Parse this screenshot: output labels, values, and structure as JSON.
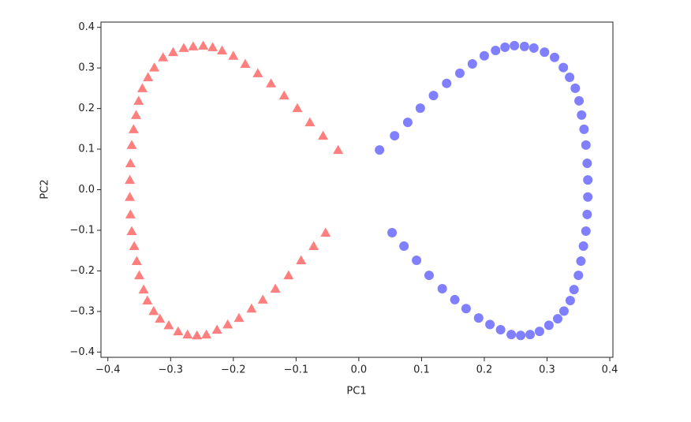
{
  "chart_data": {
    "type": "scatter",
    "x_label": "PC1",
    "y_label": "PC2",
    "xlim": [
      -0.411,
      0.405
    ],
    "ylim": [
      -0.413,
      0.413
    ],
    "xticks": [
      {
        "value": -0.4,
        "label": "−0.4"
      },
      {
        "value": -0.3,
        "label": "−0.3"
      },
      {
        "value": -0.2,
        "label": "−0.2"
      },
      {
        "value": -0.1,
        "label": "−0.1"
      },
      {
        "value": 0,
        "label": "0.0"
      },
      {
        "value": 0.1,
        "label": "0.1"
      },
      {
        "value": 0.2,
        "label": "0.2"
      },
      {
        "value": 0.3,
        "label": "0.3"
      },
      {
        "value": 0.4,
        "label": "0.4"
      }
    ],
    "yticks": [
      {
        "value": -0.4,
        "label": "−0.4"
      },
      {
        "value": -0.3,
        "label": "−0.3"
      },
      {
        "value": -0.2,
        "label": "−0.2"
      },
      {
        "value": -0.1,
        "label": "−0.1"
      },
      {
        "value": 0,
        "label": "0.0"
      },
      {
        "value": 0.1,
        "label": "0.1"
      },
      {
        "value": 0.2,
        "label": "0.2"
      },
      {
        "value": 0.3,
        "label": "0.3"
      },
      {
        "value": 0.4,
        "label": "0.4"
      }
    ],
    "series": [
      {
        "color": "red",
        "marker": "triangle",
        "x": [
          -0.033,
          -0.057,
          -0.078,
          -0.098,
          -0.119,
          -0.14,
          -0.161,
          -0.181,
          -0.2,
          -0.218,
          -0.233,
          -0.248,
          -0.264,
          -0.279,
          -0.296,
          -0.312,
          -0.326,
          -0.336,
          -0.345,
          -0.351,
          -0.355,
          -0.359,
          -0.362,
          -0.364,
          -0.365,
          -0.365,
          -0.364,
          -0.362,
          -0.358,
          -0.354,
          -0.35,
          -0.343,
          -0.337,
          -0.327,
          -0.317,
          -0.303,
          -0.288,
          -0.273,
          -0.258,
          -0.243,
          -0.226,
          -0.209,
          -0.191,
          -0.171,
          -0.153,
          -0.133,
          -0.112,
          -0.092,
          -0.072,
          -0.053
        ],
        "values": [
          0.098,
          0.133,
          0.166,
          0.201,
          0.232,
          0.262,
          0.287,
          0.31,
          0.33,
          0.343,
          0.351,
          0.355,
          0.353,
          0.349,
          0.339,
          0.326,
          0.301,
          0.277,
          0.25,
          0.219,
          0.184,
          0.149,
          0.11,
          0.065,
          0.024,
          -0.018,
          -0.061,
          -0.102,
          -0.139,
          -0.176,
          -0.211,
          -0.246,
          -0.273,
          -0.299,
          -0.318,
          -0.334,
          -0.349,
          -0.357,
          -0.359,
          -0.357,
          -0.345,
          -0.332,
          -0.316,
          -0.293,
          -0.271,
          -0.244,
          -0.211,
          -0.174,
          -0.139,
          -0.106
        ]
      },
      {
        "color": "blue",
        "marker": "circle",
        "x": [
          0.033,
          0.057,
          0.078,
          0.098,
          0.119,
          0.14,
          0.161,
          0.181,
          0.2,
          0.218,
          0.233,
          0.248,
          0.264,
          0.279,
          0.296,
          0.312,
          0.326,
          0.336,
          0.345,
          0.351,
          0.355,
          0.359,
          0.362,
          0.364,
          0.365,
          0.365,
          0.364,
          0.362,
          0.358,
          0.354,
          0.35,
          0.343,
          0.337,
          0.327,
          0.317,
          0.303,
          0.288,
          0.273,
          0.258,
          0.243,
          0.226,
          0.209,
          0.191,
          0.171,
          0.153,
          0.133,
          0.112,
          0.092,
          0.072,
          0.053
        ],
        "values": [
          0.098,
          0.133,
          0.166,
          0.201,
          0.232,
          0.262,
          0.287,
          0.31,
          0.33,
          0.343,
          0.351,
          0.355,
          0.353,
          0.349,
          0.339,
          0.326,
          0.301,
          0.277,
          0.25,
          0.219,
          0.184,
          0.149,
          0.11,
          0.065,
          0.024,
          -0.018,
          -0.061,
          -0.102,
          -0.139,
          -0.176,
          -0.211,
          -0.246,
          -0.273,
          -0.299,
          -0.318,
          -0.334,
          -0.349,
          -0.357,
          -0.359,
          -0.357,
          -0.345,
          -0.332,
          -0.316,
          -0.293,
          -0.271,
          -0.244,
          -0.211,
          -0.174,
          -0.139,
          -0.106
        ]
      }
    ]
  }
}
